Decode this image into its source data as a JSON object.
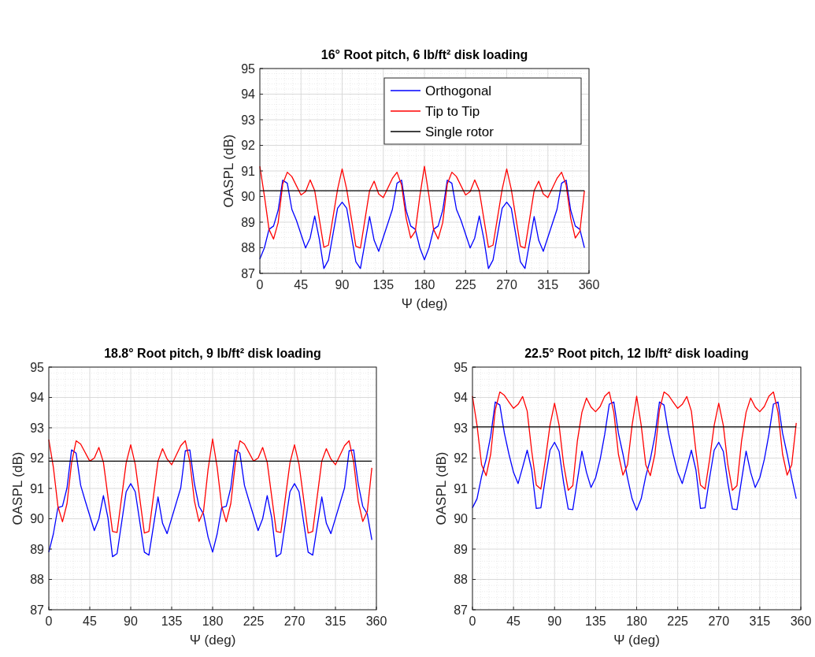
{
  "chart_data": [
    {
      "type": "line",
      "title": "16° Root pitch, 6 lb/ft² disk loading",
      "xlabel": "Ψ (deg)",
      "ylabel": "OASPL (dB)",
      "xlim": [
        0,
        360
      ],
      "xticks": [
        0,
        45,
        90,
        135,
        180,
        225,
        270,
        315,
        360
      ],
      "ylim": [
        87,
        95
      ],
      "yticks": [
        87,
        88,
        89,
        90,
        91,
        92,
        93,
        94,
        95
      ],
      "grid": true,
      "legend": "top right",
      "series": [
        {
          "name": "Orthogonal",
          "color": "#0000ff",
          "x": [
            0,
            5,
            10,
            15,
            20,
            25,
            30,
            35,
            40,
            50,
            55,
            60,
            65,
            70,
            75,
            85,
            90,
            95,
            105,
            110,
            120,
            125,
            130,
            145,
            150,
            155,
            160,
            165,
            170,
            175,
            180,
            185,
            190,
            195,
            200,
            205,
            210,
            215,
            220,
            230,
            235,
            240,
            245,
            250,
            255,
            265,
            270,
            275,
            285,
            290,
            300,
            305,
            310,
            325,
            330,
            335,
            340,
            345,
            350,
            355
          ],
          "values": [
            87.56,
            88.0,
            88.72,
            88.85,
            89.46,
            90.64,
            90.52,
            89.5,
            89.07,
            87.99,
            88.38,
            89.24,
            88.34,
            87.19,
            87.52,
            89.54,
            89.78,
            89.54,
            87.45,
            87.19,
            89.22,
            88.29,
            87.86,
            89.5,
            90.52,
            90.64,
            89.46,
            88.85,
            88.72,
            88.0,
            87.53,
            88.0,
            88.72,
            88.85,
            89.46,
            90.64,
            90.52,
            89.5,
            89.07,
            87.99,
            88.38,
            89.24,
            88.34,
            87.19,
            87.52,
            89.54,
            89.78,
            89.54,
            87.45,
            87.19,
            89.22,
            88.29,
            87.86,
            89.5,
            90.52,
            90.64,
            89.46,
            88.85,
            88.72,
            88.0
          ]
        },
        {
          "name": "Tip to Tip",
          "color": "#ff0000",
          "x": [
            0,
            5,
            10,
            15,
            20,
            25,
            30,
            35,
            45,
            50,
            55,
            60,
            70,
            75,
            85,
            90,
            95,
            105,
            110,
            120,
            125,
            130,
            135,
            145,
            150,
            155,
            160,
            165,
            170,
            175,
            180,
            185,
            190,
            195,
            200,
            205,
            210,
            215,
            225,
            230,
            235,
            240,
            250,
            255,
            265,
            270,
            275,
            285,
            290,
            300,
            305,
            310,
            315,
            325,
            330,
            335,
            340,
            345,
            350,
            355
          ],
          "values": [
            91.18,
            90.02,
            88.72,
            88.34,
            88.98,
            90.49,
            90.95,
            90.78,
            90.06,
            90.19,
            90.65,
            90.23,
            88.02,
            88.1,
            90.28,
            91.08,
            90.28,
            88.06,
            87.99,
            90.23,
            90.6,
            90.1,
            89.96,
            90.71,
            90.95,
            90.45,
            89.16,
            88.38,
            88.64,
            90.02,
            91.18,
            90.02,
            88.72,
            88.34,
            88.98,
            90.49,
            90.95,
            90.78,
            90.06,
            90.19,
            90.65,
            90.23,
            88.02,
            88.1,
            90.28,
            91.08,
            90.28,
            88.06,
            87.99,
            90.23,
            90.6,
            90.1,
            89.96,
            90.71,
            90.95,
            90.45,
            89.16,
            88.38,
            88.64,
            90.23
          ]
        },
        {
          "name": "Single rotor",
          "color": "#000000",
          "x": [
            0,
            355
          ],
          "values": [
            90.23,
            90.23
          ]
        }
      ]
    },
    {
      "type": "line",
      "title": "18.8° Root pitch, 9 lb/ft² disk loading",
      "xlabel": "Ψ (deg)",
      "ylabel": "OASPL (dB)",
      "xlim": [
        0,
        360
      ],
      "xticks": [
        0,
        45,
        90,
        135,
        180,
        225,
        270,
        315,
        360
      ],
      "ylim": [
        87,
        95
      ],
      "yticks": [
        87,
        88,
        89,
        90,
        91,
        92,
        93,
        94,
        95
      ],
      "grid": true,
      "series": [
        {
          "color": "#0000ff",
          "x": [
            0,
            5,
            10,
            15,
            20,
            25,
            30,
            35,
            40,
            50,
            55,
            60,
            65,
            70,
            75,
            85,
            90,
            95,
            105,
            110,
            120,
            125,
            130,
            145,
            150,
            155,
            160,
            165,
            170,
            175,
            180,
            185,
            190,
            195,
            200,
            205,
            210,
            215,
            220,
            230,
            235,
            240,
            245,
            250,
            255,
            265,
            270,
            275,
            285,
            290,
            300,
            305,
            310,
            325,
            330,
            335,
            340,
            345,
            350,
            355
          ],
          "values": [
            88.9,
            89.5,
            90.37,
            90.41,
            91.02,
            92.27,
            92.16,
            91.1,
            90.59,
            89.61,
            90.0,
            90.76,
            90.03,
            88.75,
            88.85,
            90.89,
            91.16,
            90.89,
            88.9,
            88.8,
            90.72,
            89.85,
            89.51,
            91.02,
            92.24,
            92.27,
            91.15,
            90.41,
            90.16,
            89.4,
            88.9,
            89.5,
            90.37,
            90.41,
            91.02,
            92.27,
            92.16,
            91.1,
            90.59,
            89.61,
            90.0,
            90.76,
            90.03,
            88.75,
            88.85,
            90.89,
            91.16,
            90.89,
            88.9,
            88.8,
            90.72,
            89.85,
            89.51,
            91.02,
            92.24,
            92.27,
            91.15,
            90.41,
            90.16,
            89.3
          ]
        },
        {
          "color": "#ff0000",
          "x": [
            0,
            5,
            10,
            15,
            20,
            25,
            30,
            35,
            45,
            50,
            55,
            60,
            70,
            75,
            85,
            90,
            95,
            105,
            110,
            120,
            125,
            130,
            135,
            145,
            150,
            155,
            160,
            165,
            170,
            175,
            180,
            185,
            190,
            195,
            200,
            205,
            210,
            215,
            225,
            230,
            235,
            240,
            250,
            255,
            265,
            270,
            275,
            285,
            290,
            300,
            305,
            310,
            315,
            325,
            330,
            335,
            340,
            345,
            350,
            355
          ],
          "values": [
            92.61,
            91.7,
            90.41,
            89.9,
            90.5,
            91.84,
            92.57,
            92.46,
            91.9,
            92.0,
            92.35,
            91.86,
            89.58,
            89.55,
            91.84,
            92.44,
            91.79,
            89.53,
            89.58,
            91.9,
            92.31,
            91.97,
            91.78,
            92.41,
            92.57,
            91.88,
            90.59,
            89.91,
            90.24,
            91.62,
            92.63,
            91.7,
            90.41,
            89.9,
            90.5,
            91.84,
            92.57,
            92.46,
            91.9,
            92.0,
            92.35,
            91.86,
            89.58,
            89.55,
            91.84,
            92.44,
            91.79,
            89.53,
            89.58,
            91.9,
            92.31,
            91.97,
            91.78,
            92.41,
            92.57,
            91.88,
            90.59,
            89.91,
            90.24,
            91.68
          ]
        },
        {
          "color": "#000000",
          "x": [
            0,
            355
          ],
          "values": [
            91.9,
            91.9
          ]
        }
      ]
    },
    {
      "type": "line",
      "title": "22.5° Root pitch, 12 lb/ft² disk loading",
      "xlabel": "Ψ (deg)",
      "ylabel": "OASPL (dB)",
      "xlim": [
        0,
        360
      ],
      "xticks": [
        0,
        45,
        90,
        135,
        180,
        225,
        270,
        315,
        360
      ],
      "ylim": [
        87,
        95
      ],
      "yticks": [
        87,
        88,
        89,
        90,
        91,
        92,
        93,
        94,
        95
      ],
      "grid": true,
      "x": [
        0,
        5,
        10,
        15,
        20,
        25,
        30,
        35,
        40,
        45,
        50,
        55,
        60,
        65,
        70,
        75,
        80,
        85,
        90,
        95,
        100,
        105,
        110,
        115,
        120,
        125,
        130,
        135,
        140,
        145,
        150,
        155,
        160,
        165,
        170,
        175,
        180,
        185,
        190,
        195,
        200,
        205,
        210,
        215,
        220,
        225,
        230,
        235,
        240,
        245,
        250,
        255,
        260,
        265,
        270,
        275,
        280,
        285,
        290,
        295,
        300,
        305,
        310,
        315,
        320,
        325,
        330,
        335,
        340,
        345,
        350,
        355
      ],
      "series": [
        {
          "color": "#0000ff",
          "values": [
            90.36,
            90.66,
            91.4,
            91.96,
            92.73,
            93.85,
            93.75,
            92.82,
            92.13,
            91.53,
            91.16,
            91.7,
            92.26,
            91.61,
            90.34,
            90.36,
            91.35,
            92.26,
            92.52,
            92.22,
            91.18,
            90.32,
            90.3,
            91.27,
            92.23,
            91.53,
            91.03,
            91.35,
            91.96,
            92.78,
            93.78,
            93.85,
            92.82,
            92.13,
            91.35,
            90.66,
            90.28,
            90.66,
            91.4,
            91.96,
            92.73,
            93.85,
            93.75,
            92.82,
            92.13,
            91.53,
            91.16,
            91.7,
            92.26,
            91.61,
            90.34,
            90.36,
            91.35,
            92.26,
            92.52,
            92.22,
            91.18,
            90.32,
            90.3,
            91.27,
            92.23,
            91.53,
            91.03,
            91.35,
            91.96,
            92.78,
            93.78,
            93.85,
            92.82,
            92.13,
            91.35,
            90.66
          ]
        },
        {
          "color": "#ff0000",
          "values": [
            94.04,
            93.08,
            91.78,
            91.42,
            92.13,
            93.59,
            94.18,
            94.07,
            93.85,
            93.64,
            93.77,
            94.03,
            93.55,
            92.22,
            91.11,
            90.98,
            91.96,
            93.08,
            93.81,
            93.08,
            91.78,
            90.94,
            91.09,
            92.56,
            93.51,
            93.98,
            93.68,
            93.53,
            93.7,
            94.04,
            94.18,
            93.51,
            92.13,
            91.44,
            91.78,
            93.08,
            94.04,
            93.08,
            91.78,
            91.42,
            92.13,
            93.59,
            94.18,
            94.07,
            93.85,
            93.64,
            93.77,
            94.03,
            93.55,
            92.22,
            91.11,
            90.98,
            91.96,
            93.08,
            93.81,
            93.08,
            91.78,
            90.94,
            91.09,
            92.56,
            93.51,
            93.98,
            93.68,
            93.53,
            93.7,
            94.04,
            94.18,
            93.51,
            92.13,
            91.44,
            91.78,
            93.16
          ]
        },
        {
          "color": "#000000",
          "x": [
            0,
            355
          ],
          "values": [
            93.03,
            93.03
          ]
        }
      ]
    }
  ]
}
